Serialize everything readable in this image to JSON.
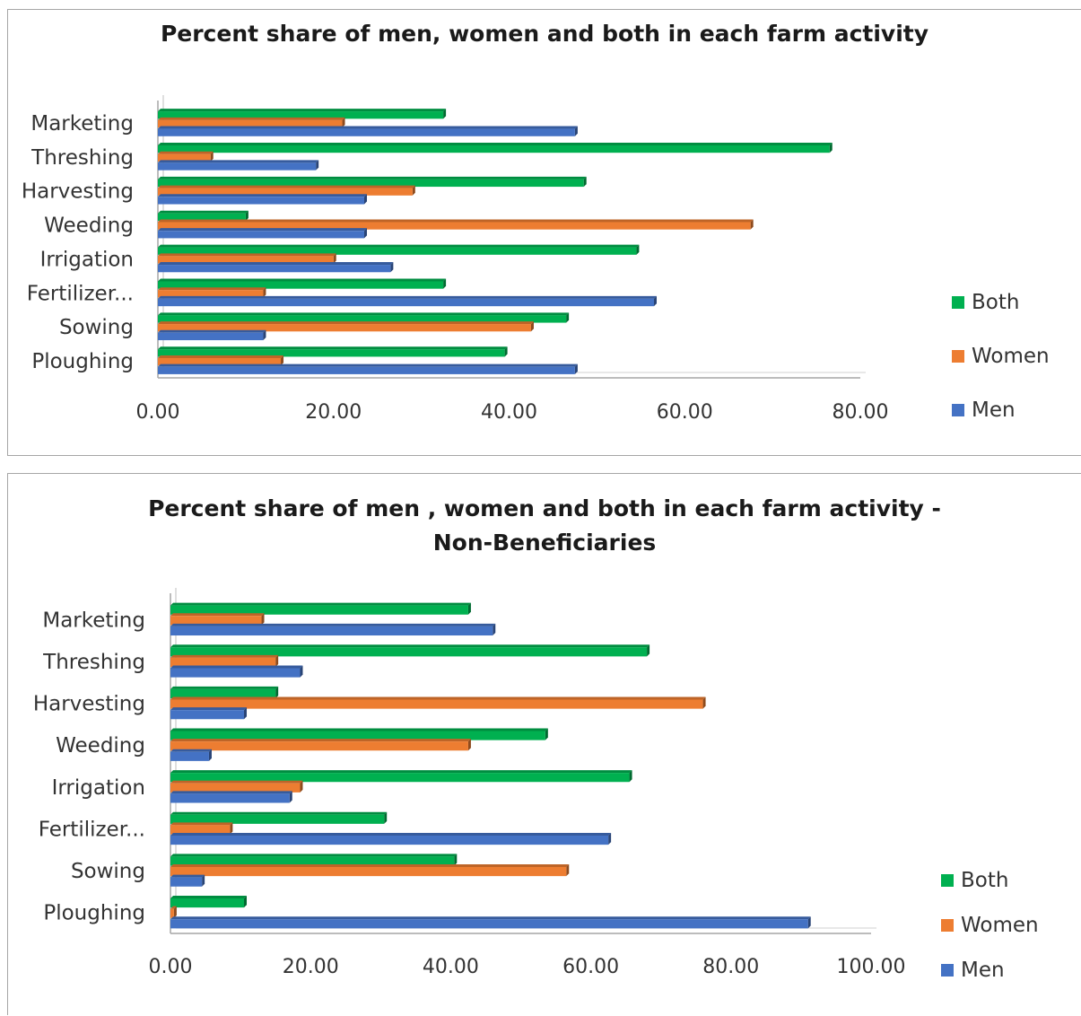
{
  "colors": {
    "Both": "#00b050",
    "Women": "#ed7d31",
    "Men": "#4472c4"
  },
  "charts": [
    {
      "id": "chart1",
      "title": "Percent share of men, women and both in each farm activity",
      "legend": [
        "Both",
        "Women",
        "Men"
      ],
      "ticks": [
        "0.00",
        "20.00",
        "40.00",
        "60.00",
        "80.00"
      ]
    },
    {
      "id": "chart2",
      "title": "Percent share of men , women and both in each farm activity - Non-Beneficiaries",
      "legend": [
        "Both",
        "Women",
        "Men"
      ],
      "ticks": [
        "0.00",
        "20.00",
        "40.00",
        "60.00",
        "80.00",
        "100.00"
      ]
    }
  ],
  "chart_data": [
    {
      "type": "bar",
      "orientation": "horizontal",
      "title": "Percent share of men, women and both in each farm activity",
      "categories": [
        "Marketing",
        "Threshing",
        "Harvesting",
        "Weeding",
        "Irrigation",
        "Fertilizer...",
        "Sowing",
        "Ploughing"
      ],
      "series": [
        {
          "name": "Both",
          "values": [
            32.5,
            76.5,
            48.5,
            10,
            54.5,
            32.5,
            46.5,
            39.5
          ]
        },
        {
          "name": "Women",
          "values": [
            21,
            6,
            29,
            67.5,
            20,
            12,
            42.5,
            14
          ]
        },
        {
          "name": "Men",
          "values": [
            47.5,
            18,
            23.5,
            23.5,
            26.5,
            56.5,
            12,
            47.5
          ]
        }
      ],
      "xlim": [
        0,
        80
      ],
      "grid": false,
      "legend_position": "right"
    },
    {
      "type": "bar",
      "orientation": "horizontal",
      "title": "Percent share of men , women and both in each farm activity - Non-Beneficiaries",
      "categories": [
        "Marketing",
        "Threshing",
        "Harvesting",
        "Weeding",
        "Irrigation",
        "Fertilizer...",
        "Sowing",
        "Ploughing"
      ],
      "series": [
        {
          "name": "Both",
          "values": [
            42.5,
            68,
            15,
            53.5,
            65.5,
            30.5,
            40.5,
            10.5
          ]
        },
        {
          "name": "Women",
          "values": [
            13,
            15,
            76,
            42.5,
            18.5,
            8.5,
            56.5,
            0.5
          ]
        },
        {
          "name": "Men",
          "values": [
            46,
            18.5,
            10.5,
            5.5,
            17,
            62.5,
            4.5,
            91
          ]
        }
      ],
      "xlim": [
        0,
        100
      ],
      "grid": false,
      "legend_position": "right"
    }
  ]
}
